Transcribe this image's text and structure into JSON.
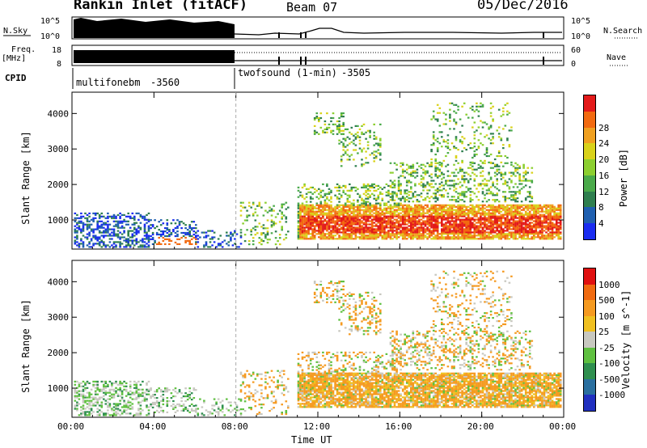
{
  "header": {
    "station": "Rankin Inlet (fitACF)",
    "beam": "Beam 07",
    "date": "05/Dec/2016"
  },
  "panels": {
    "nsky_label": "N.Sky",
    "nsky_ticks": [
      "10^5",
      "10^0"
    ],
    "nsearch_label": "N.Search",
    "nsearch_ticks": [
      "10^5",
      "10^0"
    ],
    "freq_label": "Freq.",
    "freq_unit": "[MHz]",
    "freq_ticks": [
      "18",
      "8"
    ],
    "nave_label": "Nave",
    "nave_ticks": [
      "60",
      "0"
    ],
    "cpid_label": "CPID",
    "cpid_segments": [
      {
        "name": "multifonebm",
        "id": "-3560"
      },
      {
        "name": "twofsound (1-min)",
        "id": "-3505"
      }
    ]
  },
  "chart_data": [
    {
      "type": "heatmap",
      "title": "",
      "xlabel": "Time UT",
      "ylabel": "Slant Range [km]",
      "x_ticks": [
        "00:00",
        "04:00",
        "08:00",
        "12:00",
        "16:00",
        "20:00",
        "00:00"
      ],
      "y_ticks": [
        1000,
        2000,
        3000,
        4000
      ],
      "ylim": [
        180,
        4600
      ],
      "colorbar": {
        "label": "Power [dB]",
        "ticks": [
          4,
          8,
          12,
          16,
          20,
          24,
          28
        ],
        "colors": [
          "#1a2cf0",
          "#1f5fb0",
          "#2f7f4f",
          "#4aaa4a",
          "#8ccf30",
          "#d9d21a",
          "#f0a020",
          "#f26a10",
          "#e31a1a"
        ]
      }
    },
    {
      "type": "heatmap",
      "title": "",
      "xlabel": "Time UT",
      "ylabel": "Slant Range [km]",
      "x_ticks": [
        "00:00",
        "04:00",
        "08:00",
        "12:00",
        "16:00",
        "20:00",
        "00:00"
      ],
      "y_ticks": [
        1000,
        2000,
        3000,
        4000
      ],
      "ylim": [
        180,
        4600
      ],
      "colorbar": {
        "label": "Velocity [m s^-1]",
        "ticks": [
          "1000",
          "500",
          "100",
          "25",
          "-25",
          "-100",
          "-500",
          "-1000"
        ],
        "colors": [
          "#2030c0",
          "#2a6f9f",
          "#2f8f4f",
          "#5fc040",
          "#c8c8c0",
          "#f0c020",
          "#f59a20",
          "#f06a10",
          "#e01010"
        ]
      }
    }
  ],
  "xaxis": {
    "title": "Time UT",
    "ticks": [
      "00:00",
      "04:00",
      "08:00",
      "12:00",
      "16:00",
      "20:00",
      "00:00"
    ]
  },
  "colors": {
    "frame": "#000000",
    "divider": "#aaaaaa"
  }
}
